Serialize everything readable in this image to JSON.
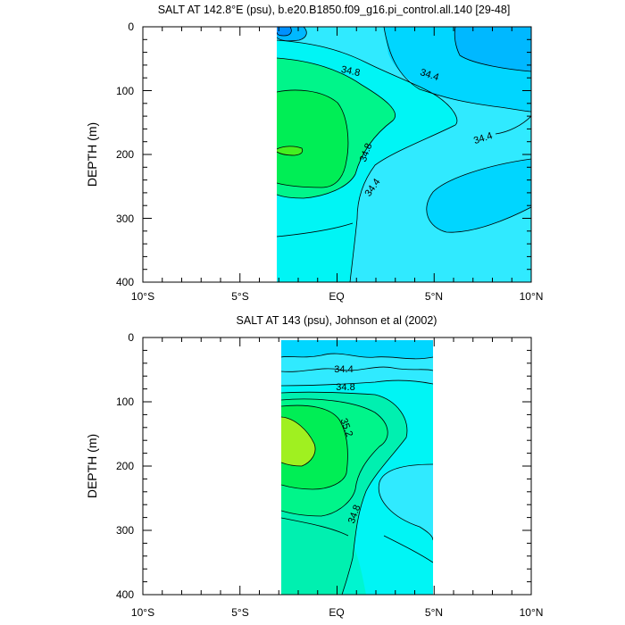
{
  "chart_data": [
    {
      "type": "contour",
      "title": "SALT AT 142.8°E (psu), b.e20.B1850.f09_g16.pi_control.all.140 [29-48]",
      "ylabel": "DEPTH (m)",
      "xlabel": "",
      "xlim": [
        -10,
        10
      ],
      "ylim": [
        400,
        0
      ],
      "x_ticks": [
        "10°S",
        "5°S",
        "EQ",
        "5°N",
        "10°N"
      ],
      "y_ticks": [
        "0",
        "100",
        "200",
        "300",
        "400"
      ],
      "data_extent_lat": [
        -3.1,
        10
      ],
      "data_extent_depth": [
        5,
        400
      ],
      "contour_labels": [
        {
          "text": "34.8",
          "lat": 0.3,
          "depth": 75
        },
        {
          "text": "34.4",
          "lat": 4.6,
          "depth": 75
        },
        {
          "text": "34.4",
          "lat": 7.7,
          "depth": 175
        },
        {
          "text": "34.8",
          "lat": 1.7,
          "depth": 195
        },
        {
          "text": "34.4",
          "lat": 2.0,
          "depth": 255
        }
      ]
    },
    {
      "type": "contour",
      "title": "SALT AT 143 (psu), Johnson et al (2002)",
      "ylabel": "DEPTH (m)",
      "xlabel": "",
      "xlim": [
        -10,
        10
      ],
      "ylim": [
        400,
        0
      ],
      "x_ticks": [
        "10°S",
        "5°S",
        "EQ",
        "5°N",
        "10°N"
      ],
      "y_ticks": [
        "0",
        "100",
        "200",
        "300",
        "400"
      ],
      "data_extent_lat": [
        -2.8,
        5
      ],
      "data_extent_depth": [
        5,
        400
      ],
      "contour_labels": [
        {
          "text": "34.4",
          "lat": 0.4,
          "depth": 47
        },
        {
          "text": "34.8",
          "lat": 0.5,
          "depth": 75
        },
        {
          "text": "35.2",
          "lat": 0.4,
          "depth": 140
        },
        {
          "text": "34.8",
          "lat": 0.8,
          "depth": 285
        }
      ]
    }
  ],
  "colors": {
    "cyan": "#00f5f5",
    "light_cyan": "#30eaff",
    "sky": "#00d6ff",
    "blue": "#00b8ff",
    "deep_blue": "#0090ff",
    "teal_light": "#00f5d0",
    "aqua_green": "#00f0b0",
    "mint": "#00f58a",
    "green": "#00ee55",
    "lime": "#44f020",
    "yellow_green": "#a0f020",
    "contour_line": "#000000"
  }
}
